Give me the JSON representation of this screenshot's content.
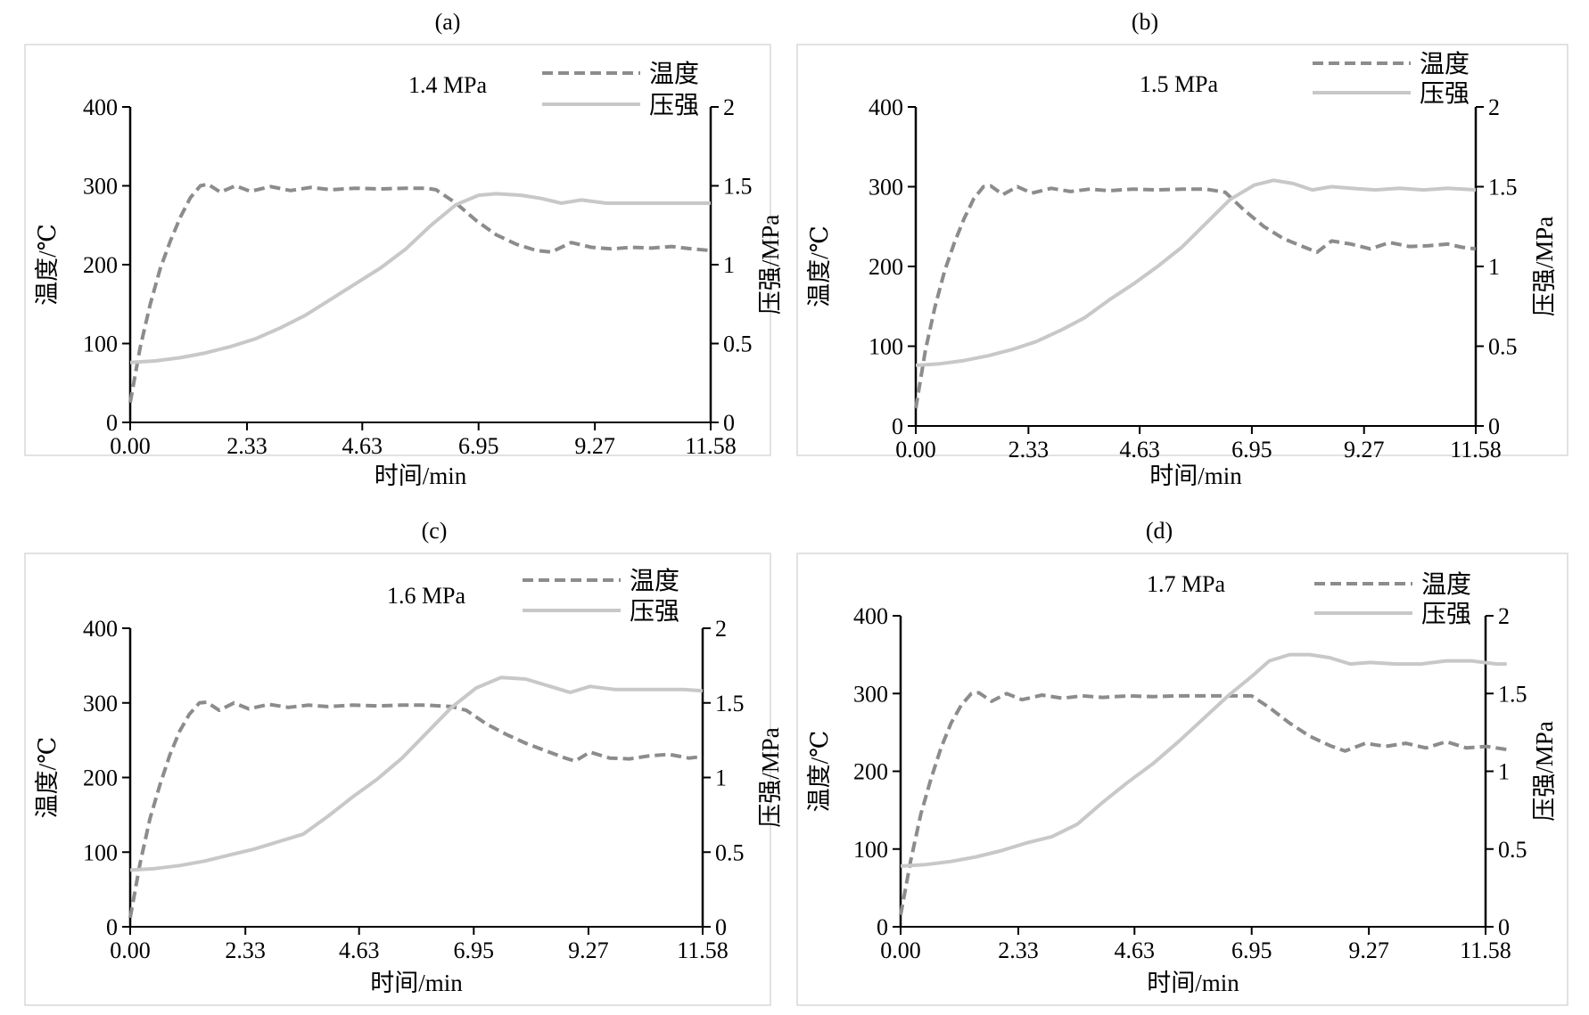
{
  "figure": {
    "colors": {
      "temperature": "#8c8c8c",
      "pressure": "#c8c8c8",
      "axis": "#000000",
      "frame": "#d9d9d9"
    }
  },
  "chart_data": [
    {
      "type": "line",
      "panel_label": "(a)",
      "annotation": "1.4 MPa",
      "xlabel": "时间/min",
      "ylabel_left": "温度/℃",
      "ylabel_right": "压强/MPa",
      "x_ticks": [
        "0.00",
        "2.33",
        "4.63",
        "6.95",
        "9.27",
        "11.58"
      ],
      "x_tick_values": [
        0.0,
        2.33,
        4.63,
        6.95,
        9.27,
        11.58
      ],
      "xlim": [
        0,
        11.58
      ],
      "y_left_ticks": [
        "0",
        "100",
        "200",
        "300",
        "400"
      ],
      "y_left_lim": [
        0,
        400
      ],
      "y_right_ticks": [
        "0",
        "0.5",
        "1",
        "1.5",
        "2"
      ],
      "y_right_lim": [
        0,
        2
      ],
      "legend_position": "top-right",
      "series": [
        {
          "name": "温度",
          "axis": "left",
          "style": "dashed",
          "x": [
            0,
            0.2,
            0.4,
            0.6,
            0.8,
            1.0,
            1.2,
            1.4,
            1.55,
            1.8,
            2.1,
            2.4,
            2.8,
            3.2,
            3.6,
            4.0,
            4.5,
            5.0,
            5.5,
            5.9,
            6.1,
            6.5,
            6.9,
            7.3,
            7.7,
            8.1,
            8.4,
            8.8,
            9.2,
            9.6,
            10.0,
            10.4,
            10.8,
            11.2,
            11.58
          ],
          "y": [
            25,
            95,
            150,
            195,
            230,
            260,
            285,
            300,
            302,
            292,
            300,
            293,
            299,
            294,
            298,
            295,
            297,
            296,
            297,
            297,
            295,
            278,
            256,
            238,
            226,
            218,
            216,
            228,
            222,
            220,
            222,
            221,
            223,
            220,
            218
          ]
        },
        {
          "name": "压强",
          "axis": "right",
          "style": "solid",
          "x": [
            0,
            0.5,
            1.0,
            1.5,
            2.0,
            2.5,
            3.0,
            3.5,
            4.0,
            4.5,
            5.0,
            5.5,
            6.0,
            6.5,
            6.95,
            7.3,
            7.8,
            8.2,
            8.6,
            9.0,
            9.5,
            10.0,
            10.5,
            11.0,
            11.58
          ],
          "y": [
            0.38,
            0.39,
            0.41,
            0.44,
            0.48,
            0.53,
            0.6,
            0.68,
            0.78,
            0.88,
            0.98,
            1.1,
            1.25,
            1.38,
            1.44,
            1.45,
            1.44,
            1.42,
            1.39,
            1.41,
            1.39,
            1.39,
            1.39,
            1.39,
            1.39
          ]
        }
      ]
    },
    {
      "type": "line",
      "panel_label": "(b)",
      "annotation": "1.5 MPa",
      "xlabel": "时间/min",
      "ylabel_left": "温度/℃",
      "ylabel_right": "压强/MPa",
      "x_ticks": [
        "0.00",
        "2.33",
        "4.63",
        "6.95",
        "9.27",
        "11.58"
      ],
      "x_tick_values": [
        0.0,
        2.33,
        4.63,
        6.95,
        9.27,
        11.58
      ],
      "xlim": [
        0,
        11.58
      ],
      "y_left_ticks": [
        "0",
        "100",
        "200",
        "300",
        "400"
      ],
      "y_left_lim": [
        0,
        400
      ],
      "y_right_ticks": [
        "0",
        "0.5",
        "1",
        "1.5",
        "2"
      ],
      "y_right_lim": [
        0,
        2
      ],
      "legend_position": "top-right",
      "series": [
        {
          "name": "温度",
          "axis": "left",
          "style": "dashed",
          "x": [
            0,
            0.2,
            0.4,
            0.6,
            0.8,
            1.0,
            1.2,
            1.4,
            1.55,
            1.8,
            2.1,
            2.4,
            2.8,
            3.2,
            3.6,
            4.0,
            4.5,
            5.0,
            5.5,
            6.0,
            6.4,
            6.8,
            7.2,
            7.6,
            8.0,
            8.3,
            8.6,
            9.0,
            9.4,
            9.8,
            10.2,
            10.6,
            11.0,
            11.3,
            11.58
          ],
          "y": [
            22,
            95,
            150,
            195,
            230,
            260,
            285,
            300,
            301,
            290,
            300,
            292,
            298,
            294,
            297,
            295,
            297,
            296,
            297,
            297,
            293,
            270,
            250,
            235,
            225,
            218,
            232,
            228,
            222,
            230,
            225,
            226,
            228,
            224,
            222
          ]
        },
        {
          "name": "压强",
          "axis": "right",
          "style": "solid",
          "x": [
            0,
            0.5,
            1.0,
            1.5,
            2.0,
            2.5,
            3.0,
            3.5,
            4.0,
            4.5,
            5.0,
            5.5,
            6.0,
            6.5,
            7.0,
            7.4,
            7.8,
            8.2,
            8.6,
            9.0,
            9.5,
            10.0,
            10.5,
            11.0,
            11.58
          ],
          "y": [
            0.38,
            0.39,
            0.41,
            0.44,
            0.48,
            0.53,
            0.6,
            0.68,
            0.79,
            0.89,
            1.0,
            1.12,
            1.27,
            1.42,
            1.51,
            1.54,
            1.52,
            1.48,
            1.5,
            1.49,
            1.48,
            1.49,
            1.48,
            1.49,
            1.48
          ]
        }
      ]
    },
    {
      "type": "line",
      "panel_label": "(c)",
      "annotation": "1.6 MPa",
      "xlabel": "时间/min",
      "ylabel_left": "温度/℃",
      "ylabel_right": "压强/MPa",
      "x_ticks": [
        "0.00",
        "2.33",
        "4.63",
        "6.95",
        "9.27",
        "11.58"
      ],
      "x_tick_values": [
        0.0,
        2.33,
        4.63,
        6.95,
        9.27,
        11.58
      ],
      "xlim": [
        0,
        11.58
      ],
      "y_left_ticks": [
        "0",
        "100",
        "200",
        "300",
        "400"
      ],
      "y_left_lim": [
        0,
        400
      ],
      "y_right_ticks": [
        "0",
        "0.5",
        "1",
        "1.5",
        "2"
      ],
      "y_right_lim": [
        0,
        2
      ],
      "legend_position": "top-right",
      "series": [
        {
          "name": "温度",
          "axis": "left",
          "style": "dashed",
          "x": [
            0,
            0.2,
            0.4,
            0.6,
            0.8,
            1.0,
            1.2,
            1.4,
            1.55,
            1.8,
            2.1,
            2.4,
            2.8,
            3.2,
            3.6,
            4.0,
            4.5,
            5.0,
            5.5,
            6.0,
            6.5,
            6.8,
            7.2,
            7.6,
            8.0,
            8.4,
            8.8,
            9.0,
            9.3,
            9.7,
            10.1,
            10.5,
            10.9,
            11.3,
            11.58
          ],
          "y": [
            12,
            85,
            145,
            190,
            230,
            262,
            285,
            300,
            301,
            290,
            300,
            292,
            298,
            294,
            297,
            295,
            297,
            296,
            297,
            297,
            295,
            290,
            272,
            258,
            246,
            236,
            226,
            222,
            234,
            226,
            225,
            229,
            231,
            226,
            228
          ]
        },
        {
          "name": "压强",
          "axis": "right",
          "style": "solid",
          "x": [
            0,
            0.5,
            1.0,
            1.5,
            2.0,
            2.5,
            3.0,
            3.5,
            4.0,
            4.5,
            5.0,
            5.5,
            6.0,
            6.5,
            7.0,
            7.5,
            8.0,
            8.5,
            8.9,
            9.3,
            9.8,
            10.3,
            10.8,
            11.2,
            11.58
          ],
          "y": [
            0.38,
            0.39,
            0.41,
            0.44,
            0.48,
            0.52,
            0.57,
            0.62,
            0.74,
            0.87,
            0.99,
            1.13,
            1.3,
            1.47,
            1.6,
            1.67,
            1.66,
            1.61,
            1.57,
            1.61,
            1.59,
            1.59,
            1.59,
            1.59,
            1.58
          ]
        }
      ]
    },
    {
      "type": "line",
      "panel_label": "(d)",
      "annotation": "1.7 MPa",
      "xlabel": "时间/min",
      "ylabel_left": "温度/℃",
      "ylabel_right": "压强/MPa",
      "x_ticks": [
        "0.00",
        "2.33",
        "4.63",
        "6.95",
        "9.27",
        "11.58"
      ],
      "x_tick_values": [
        0.0,
        2.33,
        4.63,
        6.95,
        9.27,
        11.58
      ],
      "xlim": [
        0,
        11.58
      ],
      "y_left_ticks": [
        "0",
        "100",
        "200",
        "300",
        "400"
      ],
      "y_left_lim": [
        0,
        400
      ],
      "y_right_ticks": [
        "0",
        "0.5",
        "1",
        "1.5",
        "2"
      ],
      "y_right_lim": [
        0,
        2
      ],
      "legend_position": "top-right",
      "series": [
        {
          "name": "温度",
          "axis": "left",
          "style": "dashed",
          "x": [
            0,
            0.2,
            0.4,
            0.6,
            0.8,
            1.0,
            1.2,
            1.4,
            1.55,
            1.8,
            2.1,
            2.4,
            2.8,
            3.2,
            3.6,
            4.0,
            4.5,
            5.0,
            5.5,
            6.0,
            6.5,
            6.95,
            7.3,
            7.7,
            8.1,
            8.5,
            8.8,
            9.2,
            9.6,
            10.0,
            10.4,
            10.8,
            11.2,
            11.6,
            12.0
          ],
          "y": [
            15,
            85,
            145,
            190,
            230,
            262,
            285,
            300,
            301,
            290,
            300,
            292,
            298,
            294,
            297,
            295,
            297,
            296,
            297,
            297,
            297,
            297,
            282,
            262,
            245,
            233,
            226,
            236,
            232,
            236,
            230,
            238,
            230,
            232,
            228
          ]
        },
        {
          "name": "压强",
          "axis": "right",
          "style": "solid",
          "x": [
            0,
            0.5,
            1.0,
            1.5,
            2.0,
            2.5,
            3.0,
            3.5,
            4.0,
            4.5,
            5.0,
            5.5,
            6.0,
            6.5,
            6.95,
            7.3,
            7.7,
            8.1,
            8.5,
            8.9,
            9.3,
            9.8,
            10.3,
            10.8,
            11.3,
            11.8,
            12.0
          ],
          "y": [
            0.39,
            0.4,
            0.42,
            0.45,
            0.49,
            0.54,
            0.58,
            0.66,
            0.8,
            0.93,
            1.05,
            1.19,
            1.34,
            1.49,
            1.61,
            1.71,
            1.75,
            1.75,
            1.73,
            1.69,
            1.7,
            1.69,
            1.69,
            1.71,
            1.71,
            1.69,
            1.69
          ]
        }
      ]
    }
  ]
}
